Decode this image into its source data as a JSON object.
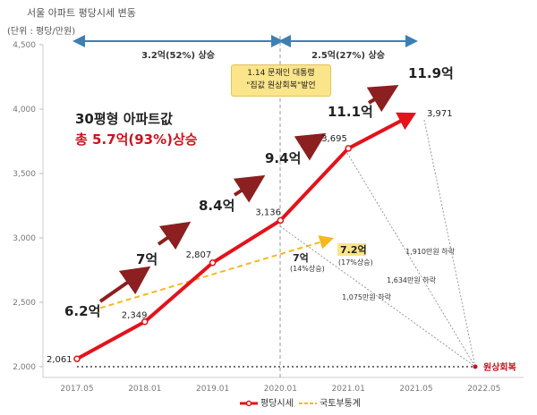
{
  "header": {
    "title": "서울 아파트 평당시세 변동",
    "unit": "(단위 : 평당/만원)"
  },
  "headline": {
    "line1": "30평형 아파트값",
    "line2": "총 5.7억(93%)상승"
  },
  "callout": {
    "line1": "1.14 문재인 대통령",
    "line2": "\"집값 원상회복\"발언"
  },
  "periods": [
    {
      "label": "3.2억(52%) 상승"
    },
    {
      "label": "2.5억(27%) 상승"
    }
  ],
  "chart_data": {
    "type": "line",
    "title": "서울 아파트 평당시세 변동",
    "ylabel": "(단위 : 평당/만원)",
    "ylim": [
      2000,
      4500
    ],
    "yticks": [
      "2,000",
      "2,500",
      "3,000",
      "3,500",
      "4,000",
      "4,500"
    ],
    "ytick_values": [
      2000,
      2500,
      3000,
      3500,
      4000,
      4500
    ],
    "x_labels": [
      "2017.05",
      "2018.01",
      "2019.01",
      "2020.01",
      "2021.01",
      "2021.05",
      "2022.05"
    ],
    "series": [
      {
        "name": "평당시세",
        "color": "#e3121b",
        "x_index": [
          0,
          1,
          2,
          3,
          4,
          5
        ],
        "values": [
          2061,
          2349,
          2807,
          3136,
          3695,
          3971
        ],
        "labels": [
          "2,061",
          "2,349",
          "2,807",
          "3,136",
          "3,695",
          "3,971"
        ]
      },
      {
        "name": "국토부통계",
        "color": "#f5b820",
        "points": [
          [
            0,
            2553
          ],
          [
            3,
            2912
          ],
          [
            4,
            2995
          ]
        ]
      }
    ],
    "price_arrows": [
      "6.2억",
      "7억",
      "8.4억",
      "9.4억",
      "11.1억",
      "11.9억"
    ],
    "ministry_labels": {
      "start": "7억",
      "start_sub": "(14%상승)",
      "end": "7.2억",
      "end_sub": "(17%상승)"
    },
    "drops": [
      "1,910만원 하락",
      "1,634만원 하락",
      "1,075만원 하락"
    ],
    "target_label": "원상회복",
    "target_value": 2061
  }
}
